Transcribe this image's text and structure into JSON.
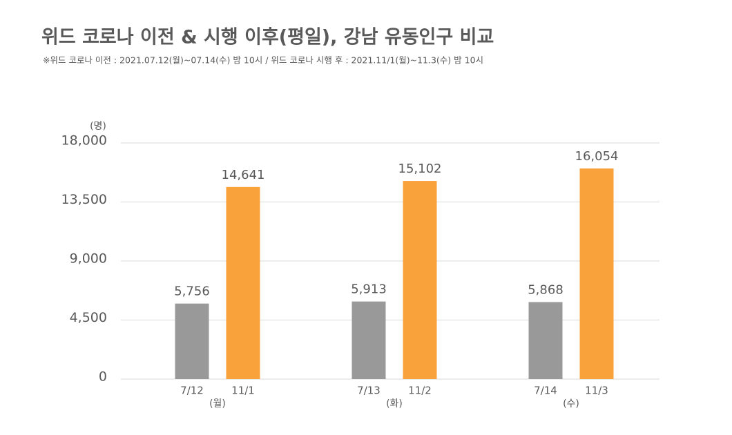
{
  "chart_data": {
    "type": "bar",
    "title": "위드 코로나 이전 & 시행 이후(평일), 강남 유동인구 비교",
    "subtitle": "※위드 코로나  이전 : 2021.07.12(월)~07.14(수) 밤 10시 / 위드 코로나 시행 후 : 2021.11/1(월)~11.3(수) 밤 10시",
    "y_unit": "(명)",
    "categories": [
      "(월)",
      "(화)",
      "(수)"
    ],
    "series": [
      {
        "color": "#999999",
        "labels": [
          "7/12",
          "7/13",
          "7/14"
        ],
        "values": [
          5756,
          5913,
          5868
        ],
        "value_labels": [
          "5,756",
          "5,913",
          "5,868"
        ]
      },
      {
        "color": "#f9a13a",
        "labels": [
          "11/1",
          "11/2",
          "11/3"
        ],
        "values": [
          14641,
          15102,
          16054
        ],
        "value_labels": [
          "14,641",
          "15,102",
          "16,054"
        ]
      }
    ],
    "ylim": [
      0,
      18000
    ],
    "yticks": [
      0,
      {
        "value": 4500,
        "label": "4,500"
      },
      {
        "value": 9000,
        "label": "9,000"
      },
      {
        "value": 13500,
        "label": "13,500"
      },
      {
        "value": 18000,
        "label": "18,000"
      }
    ],
    "grid": true
  }
}
